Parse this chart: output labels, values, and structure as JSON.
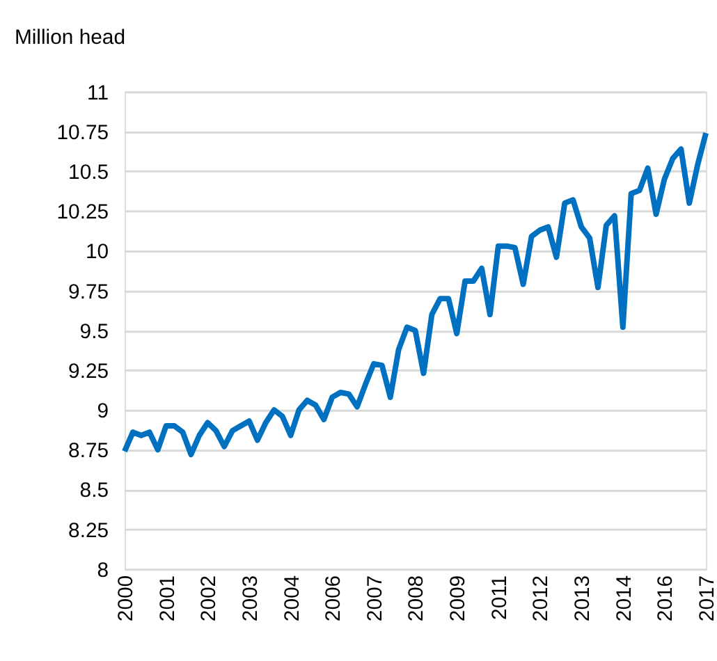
{
  "chart_data": {
    "type": "line",
    "ylabel": "Million head",
    "categories": [
      "2000",
      null,
      null,
      null,
      null,
      "2001",
      null,
      null,
      null,
      null,
      "2002",
      null,
      null,
      null,
      null,
      "2003",
      null,
      null,
      null,
      null,
      "2004",
      null,
      null,
      null,
      null,
      "2006",
      null,
      null,
      null,
      null,
      "2007",
      null,
      null,
      null,
      null,
      "2008",
      null,
      null,
      null,
      null,
      "2009",
      null,
      null,
      null,
      null,
      "2011",
      null,
      null,
      null,
      null,
      "2012",
      null,
      null,
      null,
      null,
      "2013",
      null,
      null,
      null,
      null,
      "2014",
      null,
      null,
      null,
      null,
      "2016",
      null,
      null,
      null,
      null,
      "2017"
    ],
    "series": [
      {
        "color": "#0070c0",
        "values": [
          8.74,
          8.86,
          8.84,
          8.86,
          8.75,
          8.9,
          8.9,
          8.86,
          8.72,
          8.84,
          8.92,
          8.87,
          8.77,
          8.87,
          8.9,
          8.93,
          8.81,
          8.92,
          9.0,
          8.96,
          8.84,
          9.0,
          9.06,
          9.03,
          8.94,
          9.08,
          9.11,
          9.1,
          9.02,
          9.16,
          9.29,
          9.28,
          9.08,
          9.38,
          9.52,
          9.5,
          9.23,
          9.6,
          9.7,
          9.7,
          9.48,
          9.81,
          9.81,
          9.89,
          9.6,
          10.03,
          10.03,
          10.02,
          9.79,
          10.09,
          10.13,
          10.15,
          9.96,
          10.3,
          10.32,
          10.15,
          10.08,
          9.77,
          10.16,
          10.22,
          9.52,
          10.36,
          10.38,
          10.52,
          10.23,
          10.45,
          10.58,
          10.64,
          10.3,
          10.54,
          10.74
        ]
      }
    ],
    "ylim": [
      8,
      11
    ],
    "yticks": [
      8,
      8.25,
      8.5,
      8.75,
      9,
      9.25,
      9.5,
      9.75,
      10,
      10.25,
      10.5,
      10.75,
      11
    ],
    "grid": "y",
    "marker": "none",
    "line_style": "solid"
  }
}
